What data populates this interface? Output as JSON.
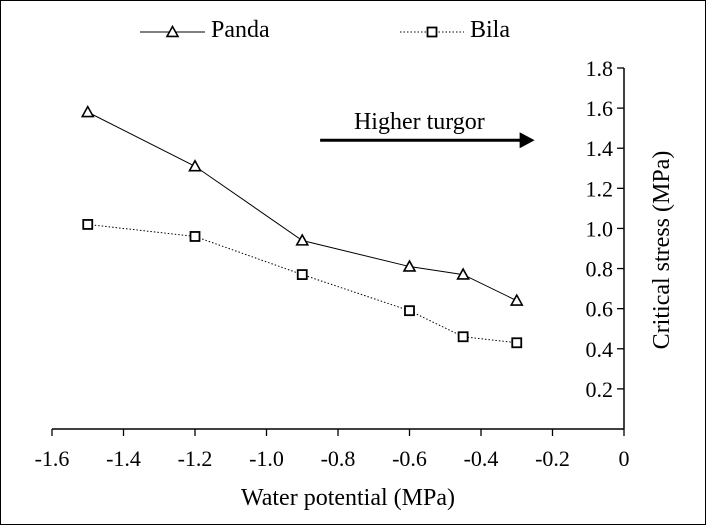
{
  "chart_data": {
    "type": "line",
    "title": "",
    "xlabel": "Water potential (MPa)",
    "ylabel": "Critical stress (MPa)",
    "xlim": [
      -1.6,
      0
    ],
    "ylim": [
      0,
      1.8
    ],
    "x_ticks": [
      "-1.6",
      "-1.4",
      "-1.2",
      "-1.0",
      "-0.8",
      "-0.6",
      "-0.4",
      "-0.2",
      "0"
    ],
    "y_ticks": [
      "0.2",
      "0.4",
      "0.6",
      "0.8",
      "1.0",
      "1.2",
      "1.4",
      "1.6",
      "1.8"
    ],
    "y_axis_position": "right",
    "grid": false,
    "legend_position": "top",
    "annotation": {
      "text": "Higher turgor",
      "arrow_from_x": -0.85,
      "arrow_to_x": -0.25,
      "arrow_y": 1.44
    },
    "series": [
      {
        "name": "Panda",
        "marker": "triangle",
        "line_style": "solid",
        "color": "#000000",
        "x": [
          -1.5,
          -1.2,
          -0.9,
          -0.6,
          -0.45,
          -0.3
        ],
        "y": [
          1.58,
          1.31,
          0.94,
          0.81,
          0.77,
          0.64
        ]
      },
      {
        "name": "Bila",
        "marker": "square",
        "line_style": "dotted",
        "color": "#000000",
        "x": [
          -1.5,
          -1.2,
          -0.9,
          -0.6,
          -0.45,
          -0.3
        ],
        "y": [
          1.02,
          0.96,
          0.77,
          0.59,
          0.46,
          0.43
        ]
      }
    ]
  }
}
